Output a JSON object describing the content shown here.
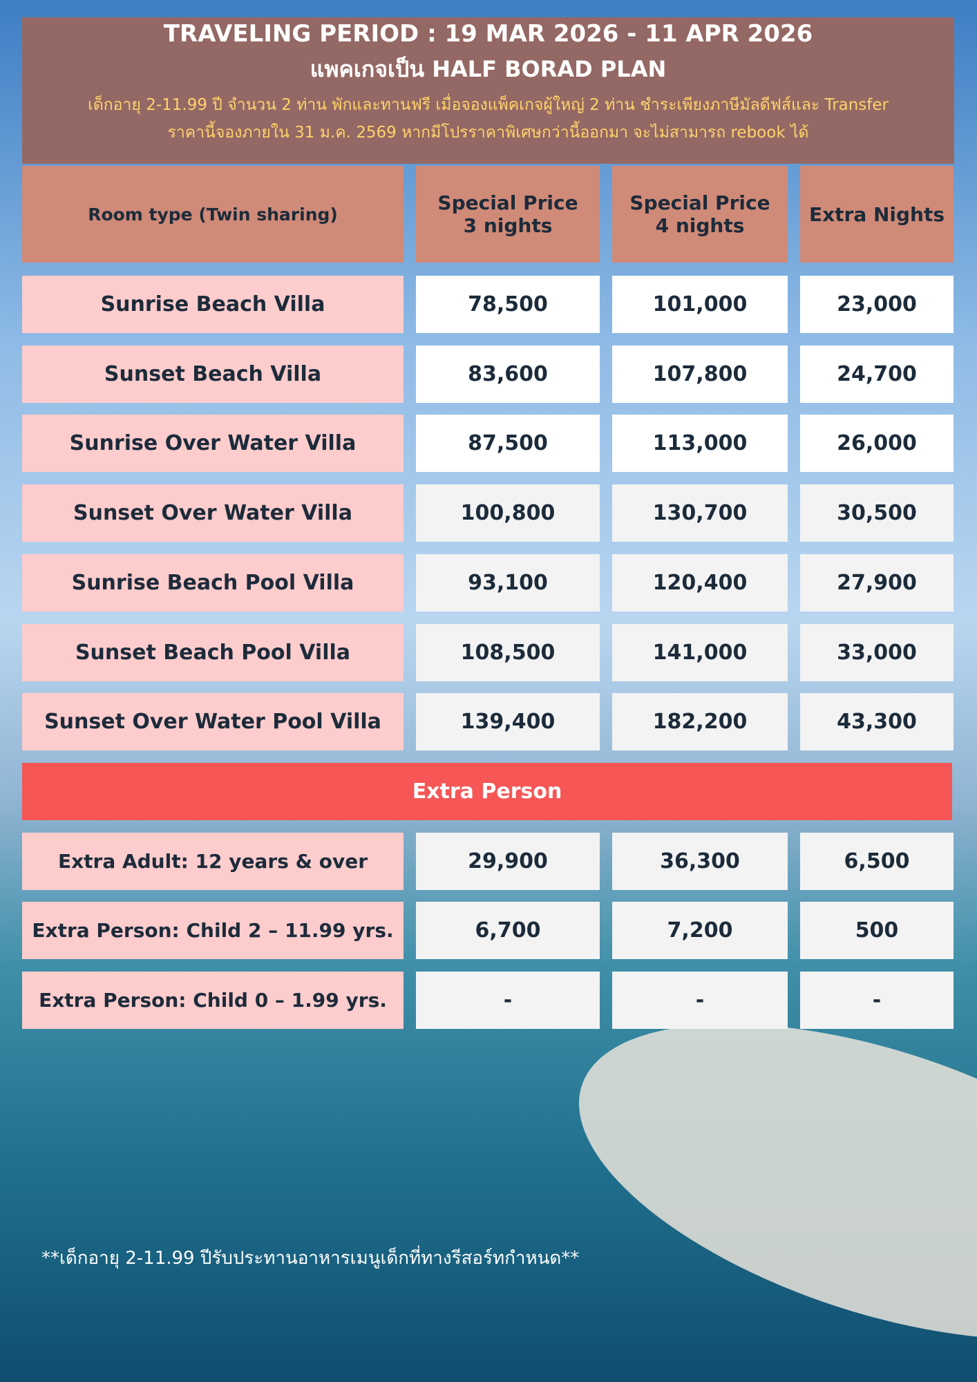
{
  "header": {
    "title": "TRAVELING PERIOD : 19 MAR 2026 - 11 APR 2026",
    "subtitle": "แพคเกจเป็น  HALF BORAD PLAN",
    "notes": [
      "เด็กอายุ 2-11.99 ปี จำนวน 2 ท่าน พักและทานฟรี เมื่อจองแพ็คเกจผู้ใหญ่ 2 ท่าน ชำระเพียงภาษีมัลดีฟส์และ Transfer",
      "ราคานี้จองภายใน 31 ม.ค. 2569 หากมีโปรราคาพิเศษกว่านี้ออกมา จะไม่สามารถ rebook ได้"
    ]
  },
  "table": {
    "columns": [
      "Room type (Twin sharing)",
      "Special Price\n3 nights",
      "Special Price\n4 nights",
      "Extra Nights"
    ],
    "rows": [
      [
        "Sunrise Beach Villa",
        "78,500",
        "101,000",
        "23,000"
      ],
      [
        "Sunset Beach Villa",
        "83,600",
        "107,800",
        "24,700"
      ],
      [
        "Sunrise Over Water Villa",
        "87,500",
        "113,000",
        "26,000"
      ],
      [
        "Sunset Over Water Villa",
        "100,800",
        "130,700",
        "30,500"
      ],
      [
        "Sunrise Beach Pool Villa",
        "93,100",
        "120,400",
        "27,900"
      ],
      [
        "Sunset Beach Pool Villa",
        "108,500",
        "141,000",
        "33,000"
      ],
      [
        "Sunset Over Water Pool Villa",
        "139,400",
        "182,200",
        "43,300"
      ]
    ],
    "section": "Extra Person",
    "extra_rows": [
      [
        "Extra Adult: 12 years & over",
        "29,900",
        "36,300",
        "6,500"
      ],
      [
        "Extra Person: Child 2 – 11.99 yrs.",
        "6,700",
        "7,200",
        "500"
      ],
      [
        "Extra Person: Child 0 – 1.99 yrs.",
        "-",
        "-",
        "-"
      ]
    ]
  },
  "footnote": "**เด็กอายุ 2-11.99 ปีรับประทานอาหารเมนูเด็กที่ทางรีสอร์ทกำหนด**"
}
